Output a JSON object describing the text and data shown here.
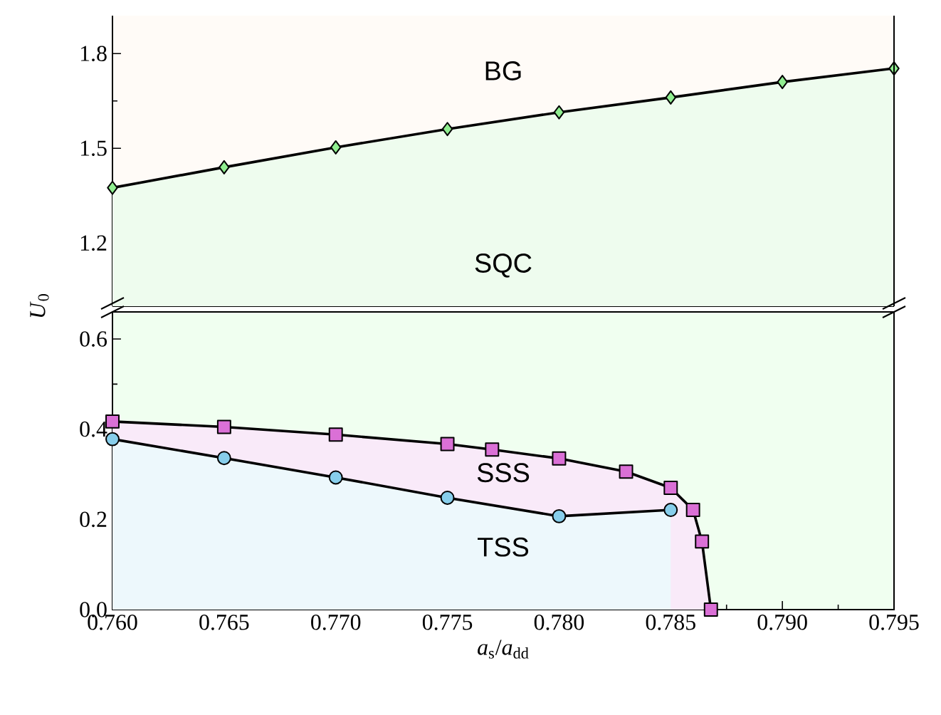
{
  "chart_data": [
    {
      "type": "area",
      "xlim": [
        0.76,
        0.795
      ],
      "ylim": [
        1.0,
        1.92
      ],
      "yticks": [
        1.2,
        1.5,
        1.8
      ],
      "tick_labels": "y",
      "marker": "diamond",
      "series": [
        {
          "color": "#90ee90",
          "x": [
            0.76,
            0.765,
            0.77,
            0.775,
            0.78,
            0.785,
            0.79,
            0.795
          ],
          "values": [
            1.375,
            1.44,
            1.503,
            1.561,
            1.614,
            1.661,
            1.71,
            1.753
          ]
        }
      ],
      "annotations": [
        "BG",
        "SQC"
      ]
    },
    {
      "type": "area",
      "xlabel": "*a*$_{s}$/*a*$_{dd}$",
      "ylabel": "*U*$_{0}$",
      "xlim": [
        0.76,
        0.795
      ],
      "ylim": [
        0.0,
        0.66
      ],
      "xticks": [
        {
          "value": 0.76,
          "label": "0.760"
        },
        {
          "value": 0.765,
          "label": "0.765"
        },
        {
          "value": 0.77,
          "label": "0.770"
        },
        {
          "value": 0.775,
          "label": "0.775"
        },
        {
          "value": 0.78,
          "label": "0.780"
        },
        {
          "value": 0.785,
          "label": "0.785"
        },
        {
          "value": 0.79,
          "label": "0.790"
        },
        {
          "value": 0.795,
          "label": "0.795"
        }
      ],
      "yticks": [
        {
          "value": 0.0,
          "label": "0.0"
        },
        {
          "value": 0.2,
          "label": "0.2"
        },
        {
          "value": 0.4,
          "label": "0.4"
        },
        {
          "value": 0.6,
          "label": "0.6"
        }
      ],
      "series": [
        {
          "color": "#da70d6",
          "marker": "square",
          "x": [
            0.76,
            0.765,
            0.77,
            0.775,
            0.777,
            0.78,
            0.783,
            0.785,
            0.786,
            0.7864,
            0.7868
          ],
          "values": [
            0.417,
            0.405,
            0.388,
            0.367,
            0.355,
            0.335,
            0.306,
            0.27,
            0.221,
            0.151,
            0.0
          ]
        },
        {
          "color": "#87ceeb",
          "marker": "circle",
          "x": [
            0.76,
            0.765,
            0.77,
            0.775,
            0.78,
            0.785
          ],
          "values": [
            0.378,
            0.336,
            0.293,
            0.248,
            0.207,
            0.221
          ]
        }
      ],
      "annotations": [
        "SSS",
        "TSS"
      ]
    }
  ]
}
